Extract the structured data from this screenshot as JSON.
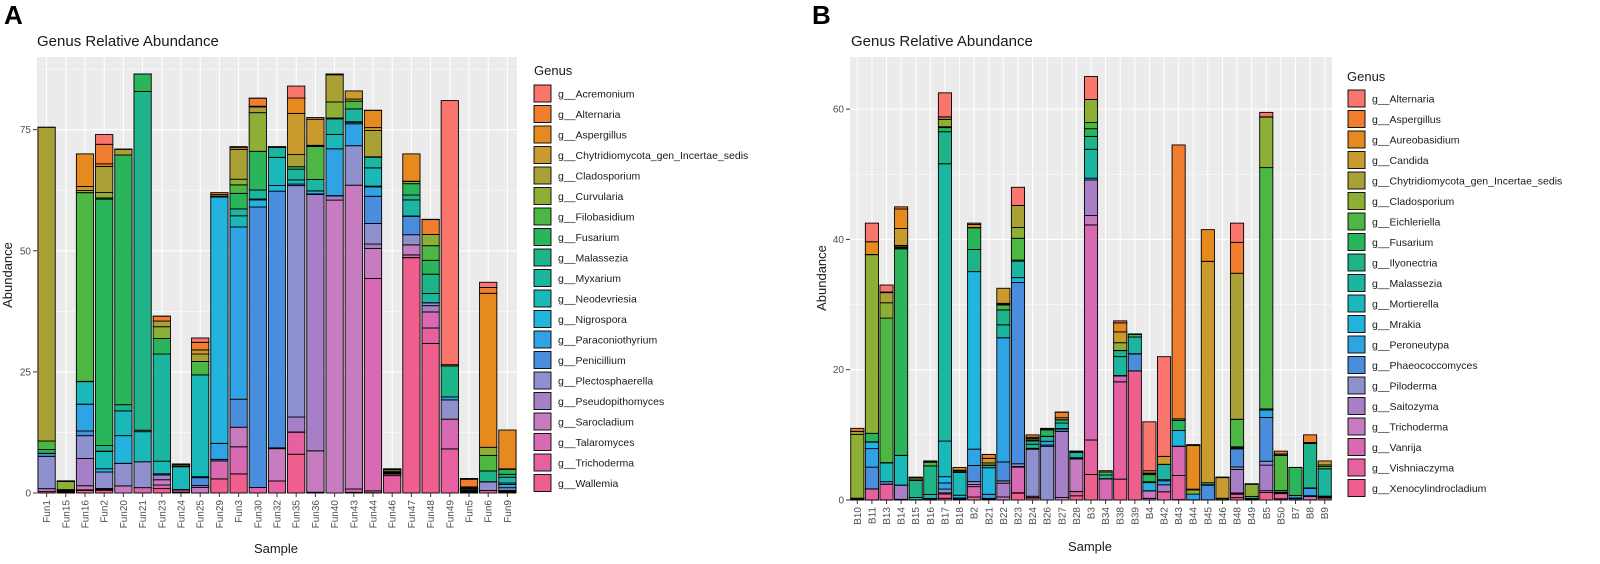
{
  "panels": [
    {
      "letter": "A",
      "chart_data": {
        "type": "bar",
        "stacked": true,
        "title": "Genus Relative Abundance",
        "xlabel": "Sample",
        "ylabel": "Abundance",
        "ylim": [
          0,
          90
        ],
        "yticks": [
          0,
          25,
          50,
          75
        ],
        "legend_title": "Genus",
        "legend_placement": "right",
        "genera": [
          "g__Acremonium",
          "g__Alternaria",
          "g__Aspergillus",
          "g__Chytridiomycota_gen_Incertae_sedis",
          "g__Cladosporium",
          "g__Curvularia",
          "g__Filobasidium",
          "g__Fusarium",
          "g__Malassezia",
          "g__Myxarium",
          "g__Neodevriesia",
          "g__Nigrospora",
          "g__Paraconiothyrium",
          "g__Penicillium",
          "g__Plectosphaerella",
          "g__Pseudopithomyces",
          "g__Sarocladium",
          "g__Talaromyces",
          "g__Trichoderma",
          "g__Wallemia"
        ],
        "colors": [
          "#F8766D",
          "#F07D30",
          "#E6891F",
          "#C99A2E",
          "#AAA136",
          "#8DAF36",
          "#4EB744",
          "#2BB55A",
          "#1FB488",
          "#1CB5A0",
          "#1AB8B8",
          "#23B3DF",
          "#2FA3E4",
          "#4A8DDD",
          "#8F90CE",
          "#A67FC7",
          "#C77CC0",
          "#D869B3",
          "#E561A0",
          "#EE5F8E"
        ],
        "categories": [
          "Fun1",
          "Fun15",
          "Fun16",
          "Fun2",
          "Fun20",
          "Fun21",
          "Fun23",
          "Fun24",
          "Fun25",
          "Fun29",
          "Fun3",
          "Fun30",
          "Fun32",
          "Fun35",
          "Fun36",
          "Fun40",
          "Fun43",
          "Fun44",
          "Fun46",
          "Fun47",
          "Fun48",
          "Fun49",
          "Fun5",
          "Fun6",
          "Fun9"
        ],
        "totals": [
          75.5,
          2.5,
          70,
          74,
          71,
          86.5,
          36.5,
          6,
          32,
          62,
          71.5,
          81.5,
          71.5,
          84,
          77.5,
          86.5,
          83,
          79,
          5,
          70,
          56.5,
          81,
          3,
          43.5,
          13
        ]
      }
    },
    {
      "letter": "B",
      "chart_data": {
        "type": "bar",
        "stacked": true,
        "title": "Genus Relative Abundance",
        "xlabel": "Sample",
        "ylabel": "Abundance",
        "ylim": [
          0,
          68
        ],
        "yticks": [
          0,
          20,
          40,
          60
        ],
        "legend_title": "Genus",
        "legend_placement": "right",
        "genera": [
          "g__Alternaria",
          "g__Aspergillus",
          "g__Aureobasidium",
          "g__Candida",
          "g__Chytridiomycota_gen_Incertae_sedis",
          "g__Cladosporium",
          "g__Eichleriella",
          "g__Fusarium",
          "g__Ilyonectria",
          "g__Malassezia",
          "g__Mortierella",
          "g__Mrakia",
          "g__Peroneutypa",
          "g__Phaeococcomyces",
          "g__Piloderma",
          "g__Saitozyma",
          "g__Trichoderma",
          "g__Vanrija",
          "g__Vishniaczyma",
          "g__Xenocylindrocladium"
        ],
        "colors": [
          "#F8766D",
          "#F07D30",
          "#E6891F",
          "#C99A2E",
          "#AAA136",
          "#8DAF36",
          "#4EB744",
          "#2BB55A",
          "#1FB488",
          "#1CB5A0",
          "#1AB8B8",
          "#23B3DF",
          "#2FA3E4",
          "#4A8DDD",
          "#8F90CE",
          "#A67FC7",
          "#C77CC0",
          "#D869B3",
          "#E561A0",
          "#EE5F8E"
        ],
        "categories": [
          "B10",
          "B11",
          "B13",
          "B14",
          "B15",
          "B16",
          "B17",
          "B18",
          "B2",
          "B21",
          "B22",
          "B23",
          "B24",
          "B26",
          "B27",
          "B28",
          "B3",
          "B34",
          "B38",
          "B39",
          "B4",
          "B42",
          "B43",
          "B44",
          "B45",
          "B46",
          "B48",
          "B49",
          "B5",
          "B50",
          "B7",
          "B8",
          "B9"
        ],
        "totals": [
          11,
          42.5,
          33,
          45,
          3.5,
          6,
          62.5,
          5,
          42.5,
          7,
          32.5,
          48,
          10,
          11,
          13.5,
          7.5,
          65,
          4.5,
          27.5,
          25.5,
          12,
          22,
          54.5,
          8.5,
          41.5,
          3.5,
          42.5,
          2.5,
          59.5,
          7.5,
          5,
          10,
          6
        ]
      }
    }
  ]
}
